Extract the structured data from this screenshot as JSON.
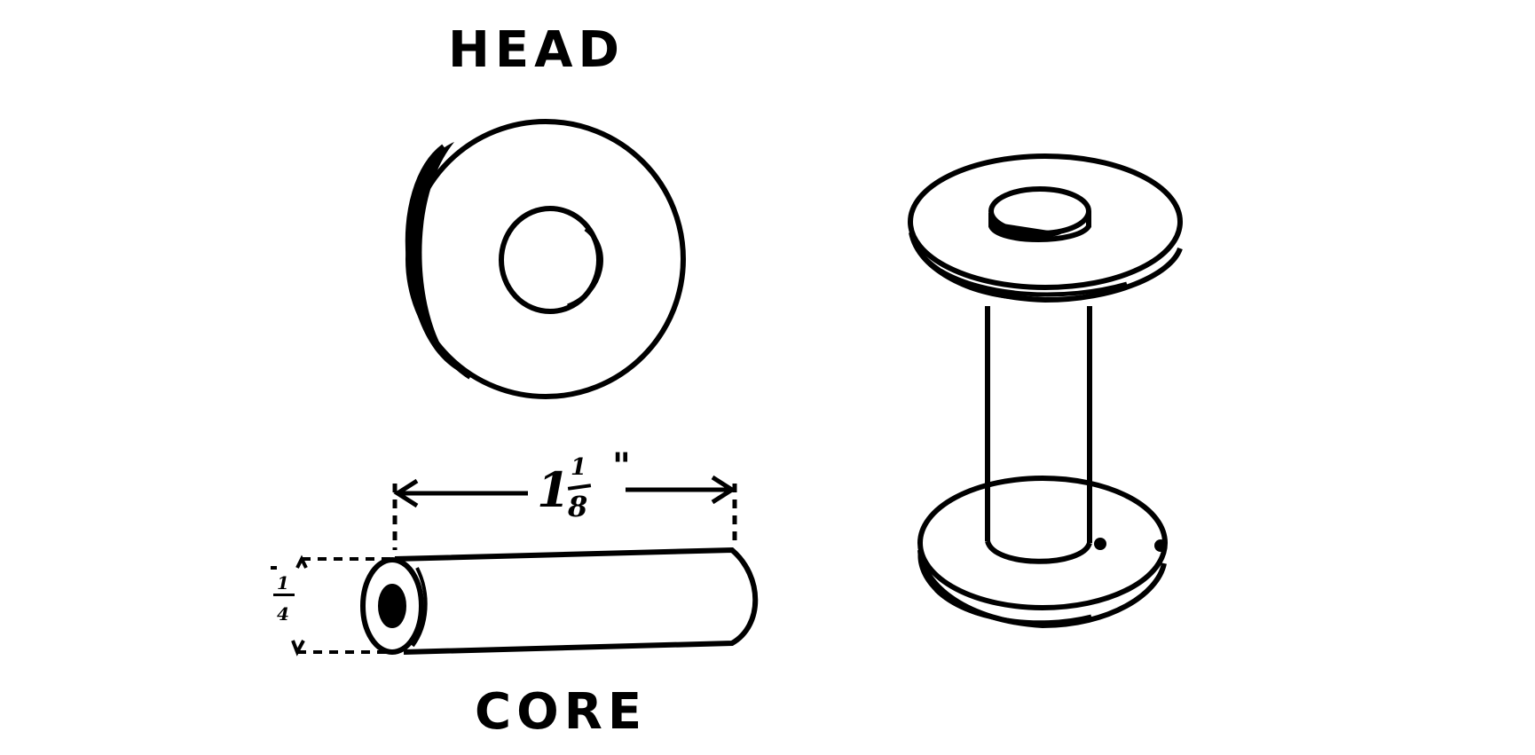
{
  "labels": {
    "head": "HEAD",
    "core": "CORE"
  },
  "dimensions": {
    "length_whole": "1",
    "length_numerator": "1",
    "length_denominator": "8",
    "length_unit": "\"",
    "diameter_numerator": "1",
    "diameter_denominator": "4"
  },
  "colors": {
    "ink": "#000000",
    "paper": "#ffffff"
  }
}
